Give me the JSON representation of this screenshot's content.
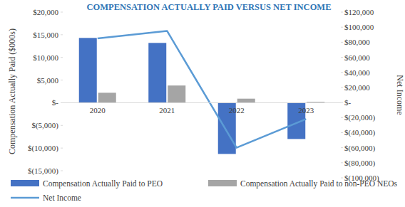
{
  "chart_data": {
    "type": "bar",
    "title": "COMPENSATION ACTUALLY PAID VERSUS NET INCOME",
    "y_label": "Compensation Actually Paid ($000s)",
    "y2_label": "Net Income",
    "categories": [
      "2020",
      "2021",
      "2022",
      "2023"
    ],
    "series": [
      {
        "name": "Compensation Actually Paid to PEO",
        "type": "bar",
        "color": "#4472c4",
        "values": [
          14300,
          13200,
          -11300,
          -8000
        ]
      },
      {
        "name": "Compensation Actually Paid to non-PEO NEOs",
        "type": "bar",
        "color": "#a5a5a5",
        "values": [
          2200,
          3800,
          900,
          200
        ]
      },
      {
        "name": "Net Income",
        "type": "line",
        "color": "#5b9bd5",
        "axis": "y2",
        "values": [
          85000,
          95000,
          -60000,
          -22000
        ]
      }
    ],
    "ylim": [
      -15000,
      20000
    ],
    "yticks": [
      {
        "value": -15000,
        "label": "$(15,000)"
      },
      {
        "value": -10000,
        "label": "$(10,000)"
      },
      {
        "value": -5000,
        "label": "$(5,000)"
      },
      {
        "value": 0,
        "label": "$-"
      },
      {
        "value": 5000,
        "label": "$5,000"
      },
      {
        "value": 10000,
        "label": "$10,000"
      },
      {
        "value": 15000,
        "label": "$15,000"
      },
      {
        "value": 20000,
        "label": "$20,000"
      }
    ],
    "y2lim": [
      -100000,
      120000
    ],
    "y2ticks": [
      {
        "value": -100000,
        "label": "$(100,000)"
      },
      {
        "value": -80000,
        "label": "$(80,000)"
      },
      {
        "value": -60000,
        "label": "$(60,000)"
      },
      {
        "value": -40000,
        "label": "$(40,000)"
      },
      {
        "value": -20000,
        "label": "$(20,000)"
      },
      {
        "value": 0,
        "label": "$-"
      },
      {
        "value": 20000,
        "label": "$20,000"
      },
      {
        "value": 40000,
        "label": "$40,000"
      },
      {
        "value": 60000,
        "label": "$60,000"
      },
      {
        "value": 80000,
        "label": "$80,000"
      },
      {
        "value": 100000,
        "label": "$100,000"
      },
      {
        "value": 120000,
        "label": "$120,000"
      }
    ],
    "grid": false,
    "legend": "bottom"
  }
}
